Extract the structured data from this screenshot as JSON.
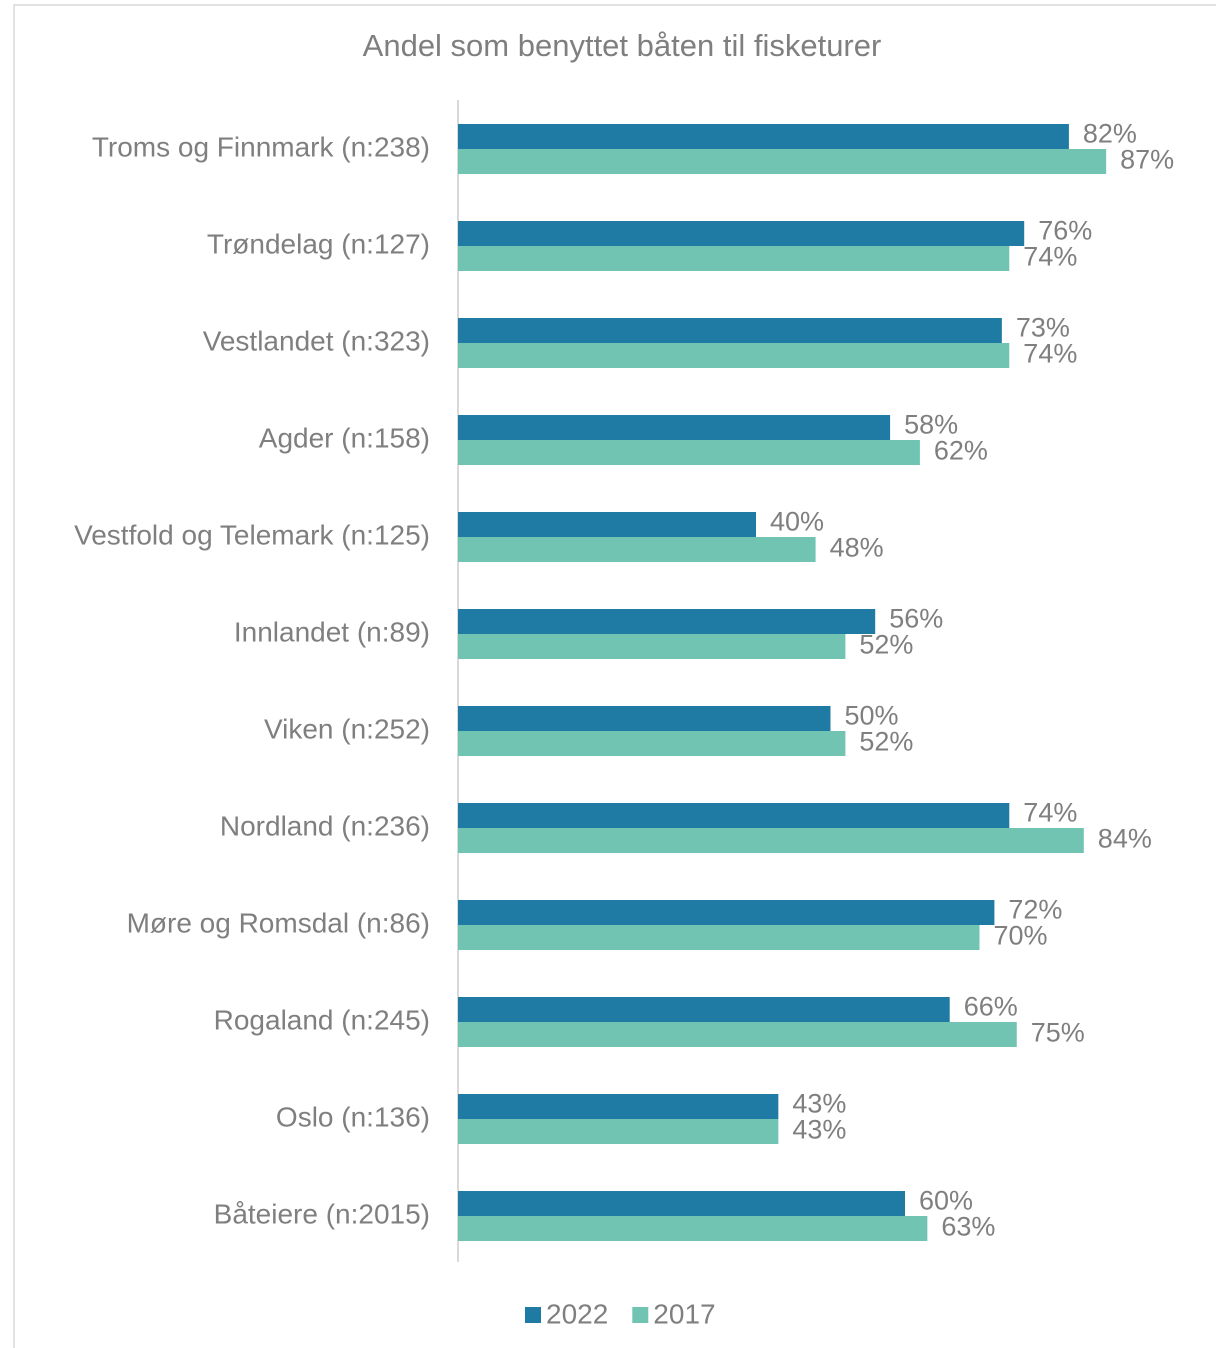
{
  "chart_data": {
    "type": "hbar",
    "title": "Andel som benyttet båten til fisketurer",
    "categories": [
      "Troms og Finnmark (n:238)",
      "Trøndelag (n:127)",
      "Vestlandet (n:323)",
      "Agder (n:158)",
      "Vestfold og Telemark (n:125)",
      "Innlandet (n:89)",
      "Viken (n:252)",
      "Nordland (n:236)",
      "Møre og Romsdal (n:86)",
      "Rogaland (n:245)",
      "Oslo (n:136)",
      "Båteiere (n:2015)"
    ],
    "series": [
      {
        "name": "2022",
        "color": "#1f7ba3",
        "values": [
          82,
          76,
          73,
          58,
          40,
          56,
          50,
          74,
          72,
          66,
          43,
          60
        ],
        "value_labels": [
          "82%",
          "76%",
          "73%",
          "58%",
          "40%",
          "56%",
          "50%",
          "74%",
          "72%",
          "66%",
          "43%",
          "60%"
        ]
      },
      {
        "name": "2017",
        "color": "#72c4b2",
        "values": [
          87,
          74,
          74,
          62,
          48,
          52,
          52,
          84,
          70,
          75,
          43,
          63
        ],
        "value_labels": [
          "87%",
          "74%",
          "74%",
          "62%",
          "48%",
          "52%",
          "52%",
          "84%",
          "70%",
          "75%",
          "43%",
          "63%"
        ]
      }
    ],
    "xlim": [
      0,
      100
    ],
    "legend": "bottom"
  }
}
